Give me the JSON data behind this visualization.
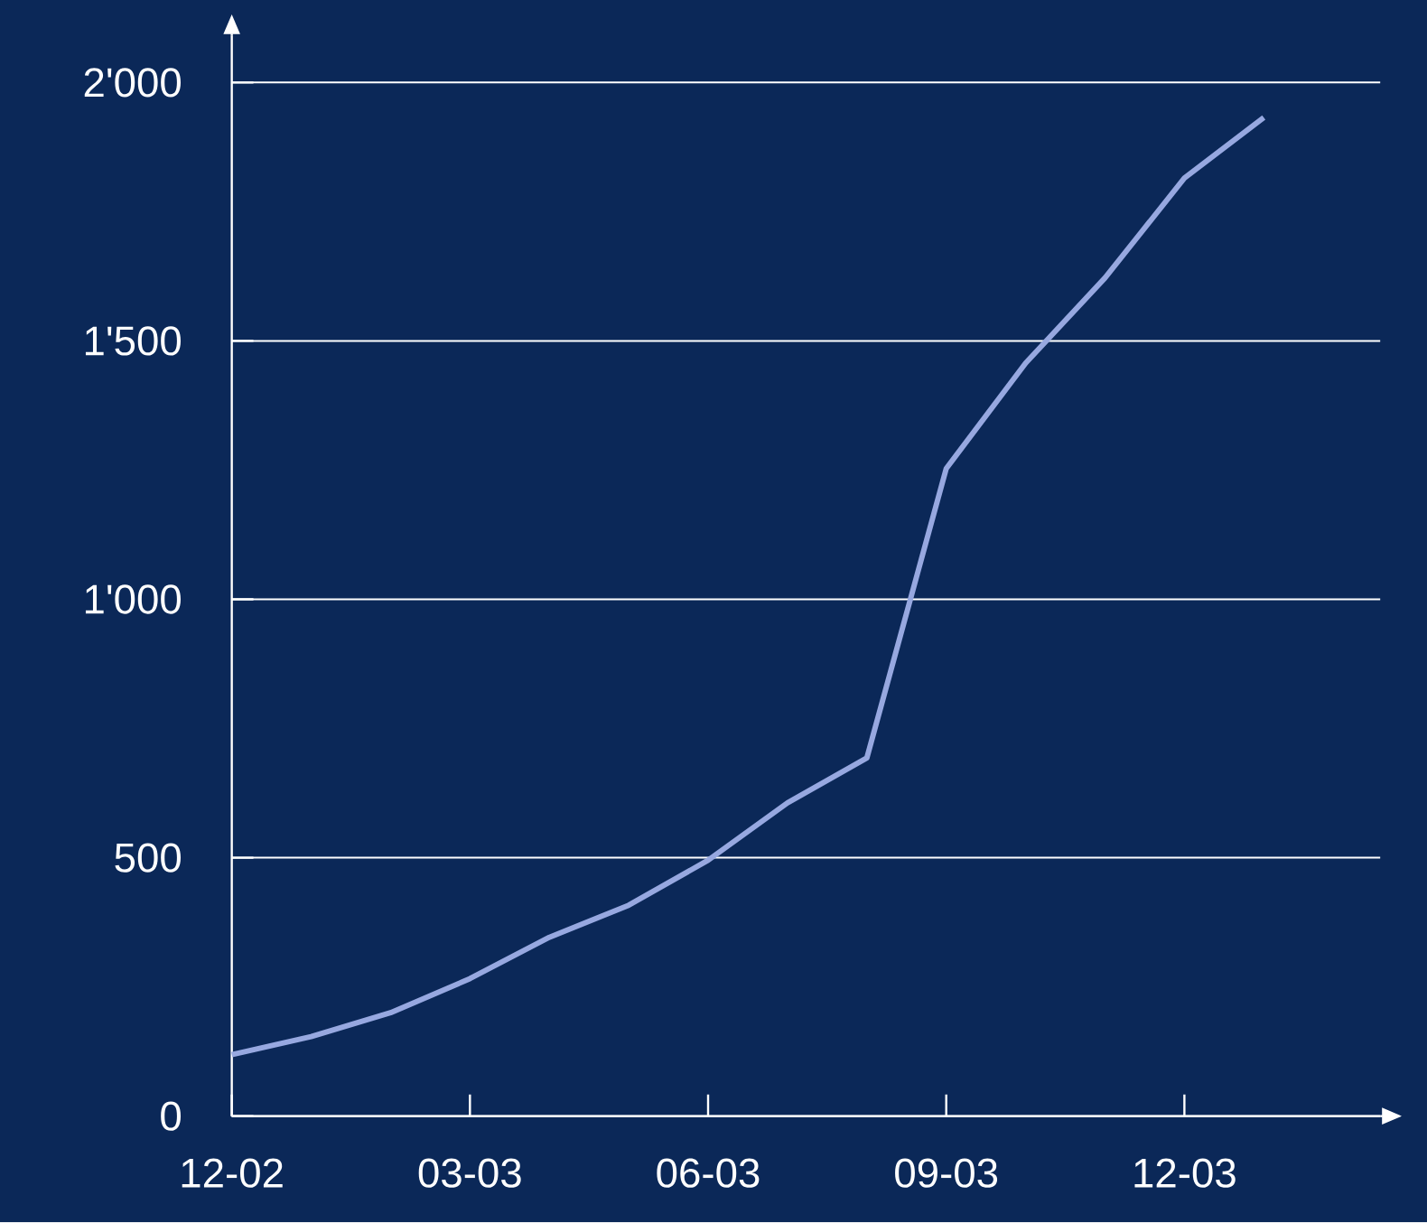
{
  "chart_data": {
    "type": "line",
    "x": [
      "2002-12",
      "2003-01",
      "2003-02",
      "2003-03",
      "2003-04",
      "2003-05",
      "2003-06",
      "2003-07",
      "2003-08",
      "2003-09",
      "2003-10",
      "2003-11",
      "2003-12",
      "2004-01"
    ],
    "series": [
      {
        "color": "#97a8e0",
        "values": [
          119,
          154,
          200,
          266,
          346,
          408,
          495,
          606,
          693,
          1253,
          1457,
          1622,
          1815,
          1932
        ]
      }
    ],
    "xlim": [
      "2002-12",
      "2004-02-15"
    ],
    "xticks": [
      {
        "value": "2002-12",
        "label": "12-02"
      },
      {
        "value": "2003-03",
        "label": "03-03"
      },
      {
        "value": "2003-06",
        "label": "06-03"
      },
      {
        "value": "2003-09",
        "label": "09-03"
      },
      {
        "value": "2003-12",
        "label": "12-03"
      }
    ],
    "ylim": [
      0,
      2090
    ],
    "yticks": [
      0,
      500,
      {
        "value": 1000,
        "label": "1'000"
      },
      {
        "value": 1500,
        "label": "1'500"
      },
      {
        "value": 2000,
        "label": "2'000"
      }
    ],
    "grid": "y",
    "marker": "none",
    "line_style": "solid"
  }
}
